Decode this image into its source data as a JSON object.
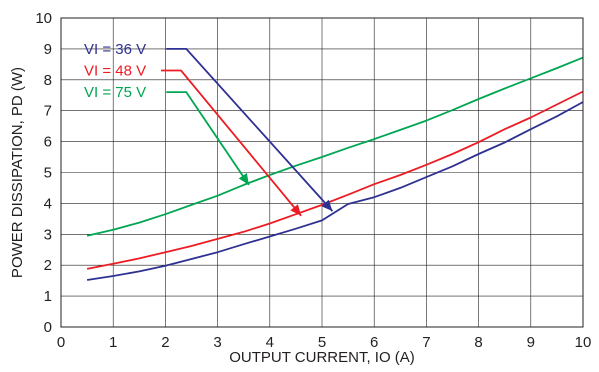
{
  "chart_data": {
    "type": "line",
    "xlabel": "OUTPUT CURRENT, IO (A)",
    "ylabel": "POWER DISSIPATION, PD (W)",
    "xlim": [
      0,
      10
    ],
    "ylim": [
      0,
      10
    ],
    "xticks": [
      "0",
      "1",
      "2",
      "3",
      "4",
      "5",
      "6",
      "7",
      "8",
      "9",
      "10"
    ],
    "yticks": [
      "0",
      "1",
      "2",
      "3",
      "4",
      "5",
      "6",
      "7",
      "8",
      "9",
      "10"
    ],
    "grid": true,
    "series": [
      {
        "name": "VI = 36 V",
        "color": "#2e3192",
        "x": [
          0.5,
          1,
          1.5,
          2,
          2.5,
          3,
          3.5,
          4,
          4.5,
          5,
          5.5,
          6,
          6.5,
          7,
          7.5,
          8,
          8.5,
          9,
          9.5,
          10
        ],
        "y": [
          1.52,
          1.65,
          1.8,
          1.98,
          2.2,
          2.42,
          2.68,
          2.93,
          3.18,
          3.45,
          3.98,
          4.2,
          4.5,
          4.85,
          5.2,
          5.6,
          5.97,
          6.4,
          6.82,
          7.28
        ]
      },
      {
        "name": "VI = 48 V",
        "color": "#ed1c24",
        "x": [
          0.5,
          1,
          1.5,
          2,
          2.5,
          3,
          3.5,
          4,
          4.5,
          5,
          5.5,
          6,
          6.5,
          7,
          7.5,
          8,
          8.5,
          9,
          9.5,
          10
        ],
        "y": [
          1.88,
          2.05,
          2.22,
          2.42,
          2.62,
          2.85,
          3.08,
          3.35,
          3.65,
          3.95,
          4.28,
          4.62,
          4.92,
          5.25,
          5.6,
          5.98,
          6.4,
          6.78,
          7.2,
          7.62
        ]
      },
      {
        "name": "VI = 75 V",
        "color": "#00a651",
        "x": [
          0.5,
          1,
          1.5,
          2,
          2.5,
          3,
          3.5,
          4,
          4.5,
          5,
          5.5,
          6,
          6.5,
          7,
          7.5,
          8,
          8.5,
          9,
          9.5,
          10
        ],
        "y": [
          2.95,
          3.15,
          3.38,
          3.65,
          3.95,
          4.25,
          4.6,
          4.92,
          5.22,
          5.5,
          5.8,
          6.08,
          6.38,
          6.68,
          7.02,
          7.38,
          7.72,
          8.05,
          8.38,
          8.72
        ]
      }
    ],
    "annotations": [
      {
        "series": 0,
        "text": "VI = 36 V",
        "level": 9.0,
        "corner_x": 2.4,
        "tip": [
          5.2,
          3.75
        ]
      },
      {
        "series": 1,
        "text": "VI = 48 V",
        "level": 8.3,
        "corner_x": 2.3,
        "tip": [
          4.6,
          3.6
        ]
      },
      {
        "series": 2,
        "text": "VI = 75 V",
        "level": 7.6,
        "corner_x": 2.4,
        "tip": [
          3.6,
          4.6
        ]
      }
    ]
  }
}
